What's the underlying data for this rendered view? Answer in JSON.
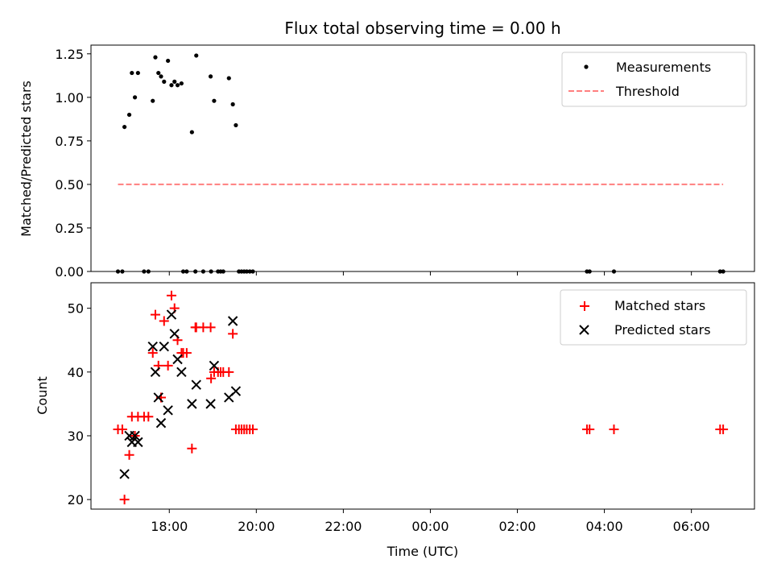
{
  "chart_data": [
    {
      "type": "scatter",
      "title": "Flux total observing time = 0.00 h",
      "xlabel": "",
      "ylabel": "Matched/Predicted stars",
      "xlim": [
        16.2,
        31.45
      ],
      "ylim": [
        0,
        1.3
      ],
      "yticks": [
        0.0,
        0.25,
        0.5,
        0.75,
        1.0,
        1.25
      ],
      "ytick_labels": [
        "0.00",
        "0.25",
        "0.50",
        "0.75",
        "1.00",
        "1.25"
      ],
      "xticks": [
        18,
        20,
        22,
        24,
        26,
        28,
        30
      ],
      "legend_position": "top-right",
      "series": [
        {
          "name": "Measurements",
          "marker": "dot",
          "color": "#000000",
          "points": [
            [
              16.97,
              0.83
            ],
            [
              17.08,
              0.9
            ],
            [
              17.14,
              1.14
            ],
            [
              17.21,
              1.0
            ],
            [
              17.28,
              1.14
            ],
            [
              17.62,
              0.98
            ],
            [
              17.68,
              1.23
            ],
            [
              17.75,
              1.14
            ],
            [
              17.81,
              1.12
            ],
            [
              17.88,
              1.09
            ],
            [
              17.97,
              1.21
            ],
            [
              18.05,
              1.07
            ],
            [
              18.12,
              1.09
            ],
            [
              18.19,
              1.07
            ],
            [
              18.28,
              1.08
            ],
            [
              18.52,
              0.8
            ],
            [
              18.62,
              1.24
            ],
            [
              18.95,
              1.12
            ],
            [
              19.03,
              0.98
            ],
            [
              19.37,
              1.11
            ],
            [
              19.46,
              0.96
            ],
            [
              19.53,
              0.84
            ],
            [
              16.82,
              0
            ],
            [
              16.92,
              0
            ],
            [
              17.42,
              0
            ],
            [
              17.52,
              0
            ],
            [
              18.32,
              0
            ],
            [
              18.4,
              0
            ],
            [
              18.6,
              0
            ],
            [
              18.78,
              0
            ],
            [
              18.96,
              0
            ],
            [
              19.12,
              0
            ],
            [
              19.18,
              0
            ],
            [
              19.24,
              0
            ],
            [
              19.6,
              0
            ],
            [
              19.66,
              0
            ],
            [
              19.72,
              0
            ],
            [
              19.78,
              0
            ],
            [
              19.85,
              0
            ],
            [
              19.92,
              0
            ],
            [
              27.6,
              0
            ],
            [
              27.66,
              0
            ],
            [
              28.22,
              0
            ],
            [
              30.66,
              0
            ],
            [
              30.73,
              0
            ]
          ]
        },
        {
          "name": "Threshold",
          "marker": "dashed-line",
          "color": "#ff7f7f",
          "points": [
            [
              16.82,
              0.5
            ],
            [
              30.73,
              0.5
            ]
          ]
        }
      ]
    },
    {
      "type": "scatter",
      "title": "",
      "xlabel": "Time (UTC)",
      "ylabel": "Count",
      "xlim": [
        16.2,
        31.45
      ],
      "ylim": [
        18.5,
        54
      ],
      "yticks": [
        20,
        30,
        40,
        50
      ],
      "xticks": [
        18,
        20,
        22,
        24,
        26,
        28,
        30
      ],
      "xtick_labels": [
        "18:00",
        "20:00",
        "22:00",
        "00:00",
        "02:00",
        "04:00",
        "06:00"
      ],
      "legend_position": "top-right",
      "series": [
        {
          "name": "Matched stars",
          "marker": "plus",
          "color": "#ff0000",
          "points": [
            [
              16.82,
              31
            ],
            [
              16.92,
              31
            ],
            [
              16.97,
              20
            ],
            [
              17.08,
              27
            ],
            [
              17.14,
              33
            ],
            [
              17.21,
              30
            ],
            [
              17.28,
              33
            ],
            [
              17.42,
              33
            ],
            [
              17.52,
              33
            ],
            [
              17.62,
              43
            ],
            [
              17.68,
              49
            ],
            [
              17.75,
              41
            ],
            [
              17.81,
              36
            ],
            [
              17.88,
              48
            ],
            [
              17.97,
              41
            ],
            [
              18.05,
              52
            ],
            [
              18.12,
              50
            ],
            [
              18.19,
              45
            ],
            [
              18.28,
              43
            ],
            [
              18.32,
              43
            ],
            [
              18.4,
              43
            ],
            [
              18.52,
              28
            ],
            [
              18.6,
              47
            ],
            [
              18.62,
              47
            ],
            [
              18.78,
              47
            ],
            [
              18.95,
              47
            ],
            [
              18.96,
              39
            ],
            [
              19.03,
              40
            ],
            [
              19.12,
              40
            ],
            [
              19.18,
              40
            ],
            [
              19.24,
              40
            ],
            [
              19.37,
              40
            ],
            [
              19.46,
              46
            ],
            [
              19.53,
              31
            ],
            [
              19.6,
              31
            ],
            [
              19.66,
              31
            ],
            [
              19.72,
              31
            ],
            [
              19.78,
              31
            ],
            [
              19.85,
              31
            ],
            [
              19.92,
              31
            ],
            [
              27.6,
              31
            ],
            [
              27.66,
              31
            ],
            [
              28.22,
              31
            ],
            [
              30.66,
              31
            ],
            [
              30.73,
              31
            ]
          ]
        },
        {
          "name": "Predicted stars",
          "marker": "x",
          "color": "#000000",
          "points": [
            [
              16.97,
              24
            ],
            [
              17.08,
              30
            ],
            [
              17.14,
              29
            ],
            [
              17.21,
              30
            ],
            [
              17.28,
              29
            ],
            [
              17.62,
              44
            ],
            [
              17.68,
              40
            ],
            [
              17.75,
              36
            ],
            [
              17.81,
              32
            ],
            [
              17.88,
              44
            ],
            [
              17.97,
              34
            ],
            [
              18.05,
              49
            ],
            [
              18.12,
              46
            ],
            [
              18.19,
              42
            ],
            [
              18.28,
              40
            ],
            [
              18.52,
              35
            ],
            [
              18.62,
              38
            ],
            [
              18.95,
              35
            ],
            [
              19.03,
              41
            ],
            [
              19.37,
              36
            ],
            [
              19.46,
              48
            ],
            [
              19.53,
              37
            ]
          ]
        }
      ]
    }
  ]
}
